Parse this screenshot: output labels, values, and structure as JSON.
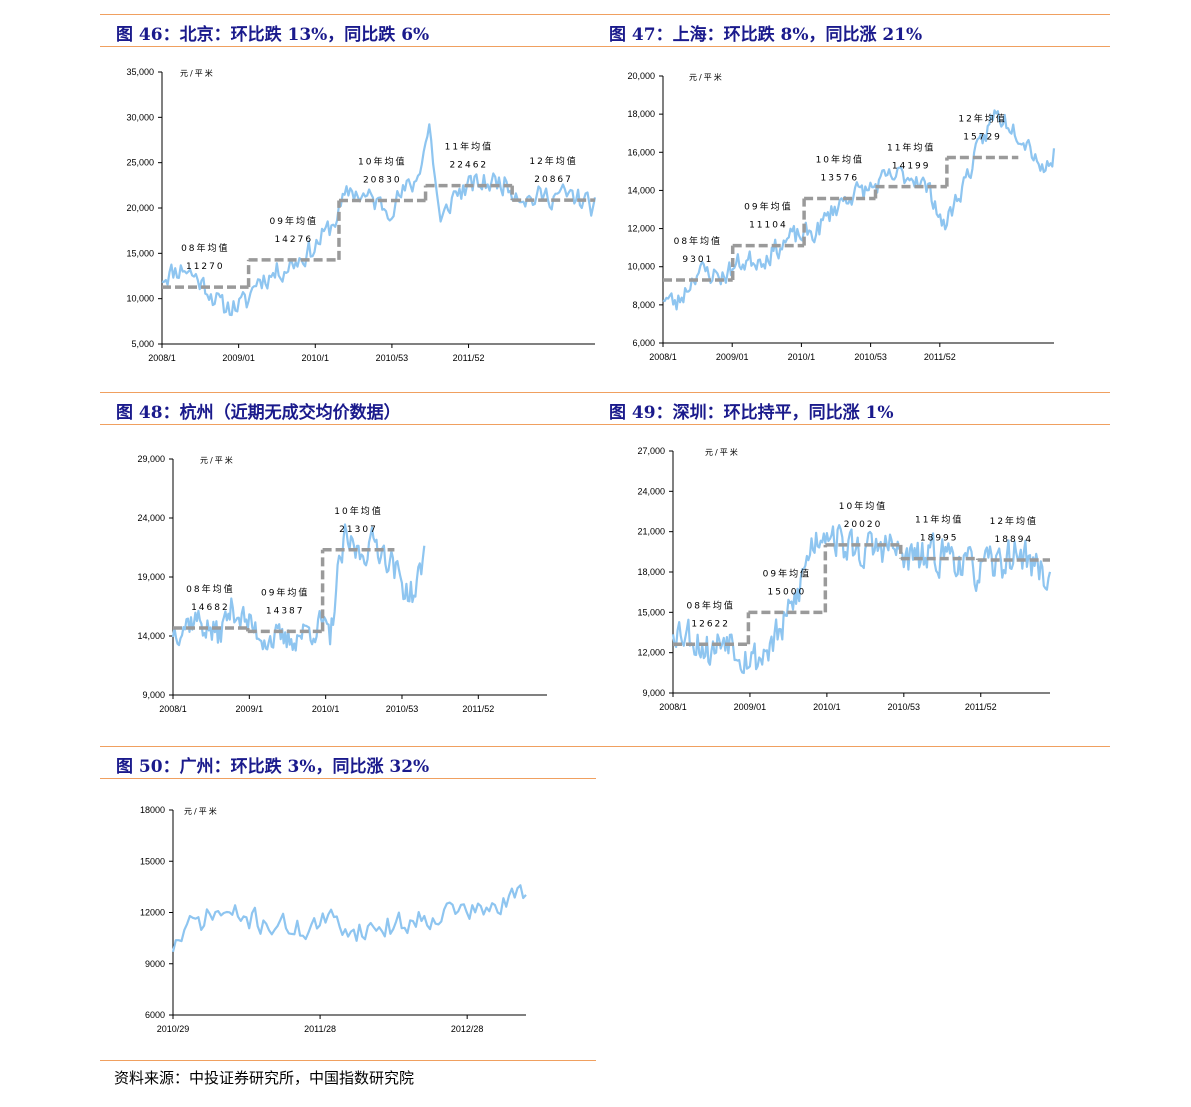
{
  "source": "资料来源：中投证券研究所，中国指数研究院",
  "colors": {
    "series": "#8ec5f0",
    "average": "#9a9a9a",
    "rule": "#f0a060",
    "title": "#1a1a8c"
  },
  "chart_data": [
    {
      "id": "beijing",
      "type": "line",
      "title": "图 46：北京：环比跌 13%，同比跌 6%",
      "unit": "元/平米",
      "ylim": [
        5000,
        35000
      ],
      "yticks": [
        "5,000",
        "10,000",
        "15,000",
        "20,000",
        "25,000",
        "30,000",
        "35,000"
      ],
      "xticks": [
        "2008/1",
        "2009/01",
        "2010/1",
        "2010/53",
        "2011/52"
      ],
      "x_range": [
        0,
        230
      ],
      "series": [
        {
          "weeks": 230,
          "seed": 11,
          "anchors": [
            [
              0,
              12500
            ],
            [
              12,
              13500
            ],
            [
              25,
              11000
            ],
            [
              32,
              9000
            ],
            [
              45,
              9500
            ],
            [
              50,
              12000
            ],
            [
              60,
              12800
            ],
            [
              70,
              14000
            ],
            [
              80,
              15500
            ],
            [
              90,
              18000
            ],
            [
              100,
              22000
            ],
            [
              110,
              21000
            ],
            [
              120,
              20000
            ],
            [
              135,
              23000
            ],
            [
              142,
              29000
            ],
            [
              148,
              18000
            ],
            [
              155,
              21500
            ],
            [
              165,
              22500
            ],
            [
              180,
              23000
            ],
            [
              195,
              21000
            ],
            [
              210,
              21500
            ],
            [
              222,
              21000
            ],
            [
              230,
              20000
            ]
          ],
          "noise": 1800
        }
      ],
      "averages": [
        {
          "label": "08年均值",
          "value": "11270",
          "start": 0,
          "end": 46
        },
        {
          "label": "09年均值",
          "value": "14276",
          "start": 46,
          "end": 94
        },
        {
          "label": "10年均值",
          "value": "20830",
          "start": 94,
          "end": 140
        },
        {
          "label": "11年均值",
          "value": "22462",
          "start": 140,
          "end": 186
        },
        {
          "label": "12年均值",
          "value": "20867",
          "start": 186,
          "end": 230
        }
      ]
    },
    {
      "id": "shanghai",
      "type": "line",
      "title": "图 47：上海：环比跌 8%，同比涨 21%",
      "unit": "元/平米",
      "ylim": [
        6000,
        20000
      ],
      "yticks": [
        "6,000",
        "8,000",
        "10,000",
        "12,000",
        "14,000",
        "16,000",
        "18,000",
        "20,000"
      ],
      "xticks": [
        "2008/1",
        "2009/01",
        "2010/1",
        "2010/53",
        "2011/52"
      ],
      "x_range": [
        0,
        230
      ],
      "series": [
        {
          "weeks": 230,
          "seed": 23,
          "anchors": [
            [
              0,
              8500
            ],
            [
              8,
              8000
            ],
            [
              20,
              9800
            ],
            [
              35,
              9500
            ],
            [
              45,
              10200
            ],
            [
              60,
              10500
            ],
            [
              75,
              11500
            ],
            [
              90,
              11800
            ],
            [
              100,
              13000
            ],
            [
              110,
              13800
            ],
            [
              120,
              14000
            ],
            [
              130,
              14500
            ],
            [
              140,
              14800
            ],
            [
              150,
              14700
            ],
            [
              160,
              13500
            ],
            [
              165,
              12000
            ],
            [
              175,
              14000
            ],
            [
              185,
              16000
            ],
            [
              195,
              18000
            ],
            [
              205,
              17500
            ],
            [
              215,
              16500
            ],
            [
              225,
              15000
            ],
            [
              230,
              16000
            ]
          ],
          "noise": 800
        }
      ],
      "averages": [
        {
          "label": "08年均值",
          "value": "9301",
          "start": 0,
          "end": 41
        },
        {
          "label": "09年均值",
          "value": "11104",
          "start": 41,
          "end": 83
        },
        {
          "label": "10年均值",
          "value": "13576",
          "start": 83,
          "end": 125
        },
        {
          "label": "11年均值",
          "value": "14199",
          "start": 125,
          "end": 167
        },
        {
          "label": "12年均值",
          "value": "15729",
          "start": 167,
          "end": 209
        }
      ]
    },
    {
      "id": "hangzhou",
      "type": "line",
      "title": "图 48：杭州（近期无成交均价数据）",
      "unit": "元/平米",
      "ylim": [
        9000,
        29000
      ],
      "yticks": [
        "9,000",
        "14,000",
        "19,000",
        "24,000",
        "29,000"
      ],
      "xticks": [
        "2008/1",
        "2009/1",
        "2010/1",
        "2010/53",
        "2011/52"
      ],
      "x_range": [
        0,
        250
      ],
      "series": [
        {
          "weeks": 168,
          "seed": 37,
          "anchors": [
            [
              0,
              14500
            ],
            [
              15,
              15500
            ],
            [
              30,
              14000
            ],
            [
              40,
              16500
            ],
            [
              50,
              15000
            ],
            [
              60,
              14000
            ],
            [
              75,
              13500
            ],
            [
              90,
              14500
            ],
            [
              100,
              15000
            ],
            [
              105,
              13500
            ],
            [
              110,
              19000
            ],
            [
              115,
              22000
            ],
            [
              125,
              21000
            ],
            [
              135,
              22000
            ],
            [
              145,
              20500
            ],
            [
              155,
              18000
            ],
            [
              162,
              17500
            ],
            [
              168,
              21000
            ]
          ],
          "noise": 1800
        }
      ],
      "averages": [
        {
          "label": "08年均值",
          "value": "14682",
          "start": 0,
          "end": 50
        },
        {
          "label": "09年均值",
          "value": "14387",
          "start": 50,
          "end": 100
        },
        {
          "label": "10年均值",
          "value": "21307",
          "start": 100,
          "end": 148
        }
      ]
    },
    {
      "id": "shenzhen",
      "type": "line",
      "title": "图 49：深圳：环比持平，同比涨 1%",
      "unit": "元/平米",
      "ylim": [
        9000,
        27000
      ],
      "yticks": [
        "9,000",
        "12,000",
        "15,000",
        "18,000",
        "21,000",
        "24,000",
        "27,000"
      ],
      "xticks": [
        "2008/1",
        "2009/01",
        "2010/1",
        "2010/53",
        "2011/52"
      ],
      "x_range": [
        0,
        245
      ],
      "series": [
        {
          "weeks": 245,
          "seed": 53,
          "anchors": [
            [
              0,
              14000
            ],
            [
              10,
              13500
            ],
            [
              25,
              12000
            ],
            [
              35,
              13500
            ],
            [
              45,
              12000
            ],
            [
              55,
              11500
            ],
            [
              70,
              13500
            ],
            [
              80,
              16000
            ],
            [
              90,
              20000
            ],
            [
              100,
              21500
            ],
            [
              110,
              20000
            ],
            [
              125,
              19500
            ],
            [
              140,
              20000
            ],
            [
              150,
              19000
            ],
            [
              165,
              19000
            ],
            [
              180,
              19500
            ],
            [
              195,
              18000
            ],
            [
              210,
              18500
            ],
            [
              225,
              19500
            ],
            [
              235,
              18500
            ],
            [
              245,
              17500
            ]
          ],
          "noise": 2000
        }
      ],
      "averages": [
        {
          "label": "08年均值",
          "value": "12622",
          "start": 0,
          "end": 49
        },
        {
          "label": "09年均值",
          "value": "15000",
          "start": 49,
          "end": 99
        },
        {
          "label": "10年均值",
          "value": "20020",
          "start": 99,
          "end": 148
        },
        {
          "label": "11年均值",
          "value": "18995",
          "start": 148,
          "end": 198
        },
        {
          "label": "12年均值",
          "value": "18894",
          "start": 198,
          "end": 245
        }
      ]
    },
    {
      "id": "guangzhou",
      "type": "line",
      "title": "图 50：广州：环比跌 3%，同比涨 32%",
      "unit": "元/平米",
      "ylim": [
        6000,
        18000
      ],
      "yticks": [
        "6000",
        "9000",
        "12000",
        "15000",
        "18000"
      ],
      "xticks": [
        "2010/29",
        "2011/28",
        "2012/28"
      ],
      "x_range": [
        0,
        125
      ],
      "series": [
        {
          "weeks": 125,
          "seed": 71,
          "anchors": [
            [
              0,
              10000
            ],
            [
              5,
              11000
            ],
            [
              15,
              12000
            ],
            [
              30,
              11500
            ],
            [
              45,
              11000
            ],
            [
              55,
              11500
            ],
            [
              65,
              11000
            ],
            [
              80,
              11300
            ],
            [
              90,
              11800
            ],
            [
              100,
              12200
            ],
            [
              110,
              12000
            ],
            [
              118,
              12500
            ],
            [
              125,
              13500
            ]
          ],
          "noise": 1000
        }
      ],
      "averages": []
    }
  ]
}
